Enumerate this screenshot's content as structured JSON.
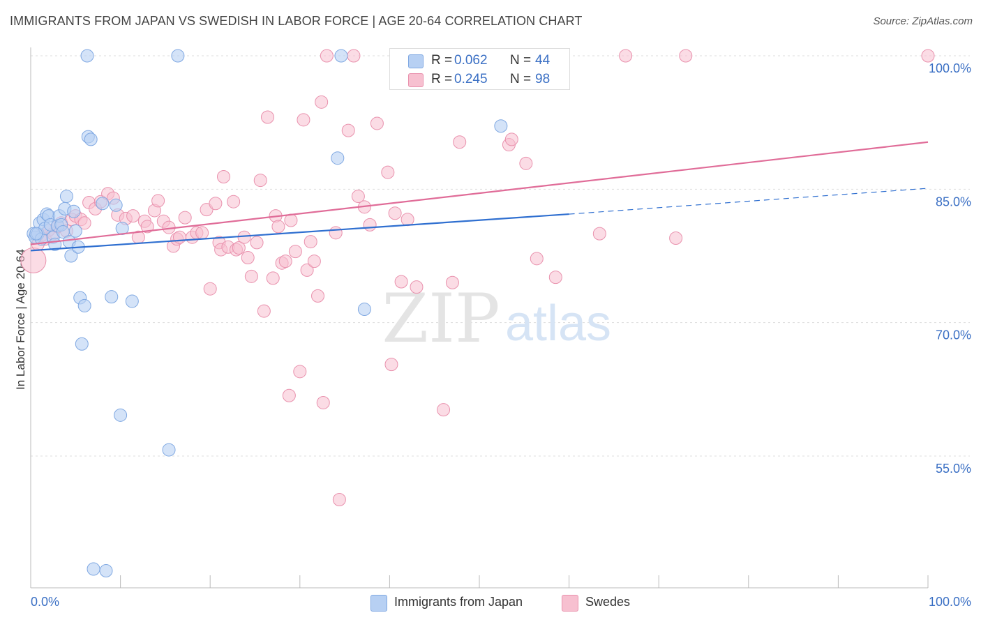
{
  "title": "IMMIGRANTS FROM JAPAN VS SWEDISH IN LABOR FORCE | AGE 20-64 CORRELATION CHART",
  "source": "Source: ZipAtlas.com",
  "watermark": {
    "zip": "ZIP",
    "atlas": "atlas"
  },
  "legend": {
    "r_label": "R =",
    "n_label": "N =",
    "rows": [
      {
        "r": "0.062",
        "n": "44"
      },
      {
        "r": "0.245",
        "n": "98"
      }
    ]
  },
  "colors": {
    "japan_fill": "#b7d0f3",
    "japan_stroke": "#7fa8e2",
    "japan_line": "#2f6fd0",
    "swedes_fill": "#f7c0d0",
    "swedes_stroke": "#e991ad",
    "swedes_line": "#e06c98",
    "tick_label": "#3a6fc4",
    "grid": "#dddddd"
  },
  "chart_data": {
    "type": "scatter",
    "title": "IMMIGRANTS FROM JAPAN VS SWEDISH IN LABOR FORCE | AGE 20-64 CORRELATION CHART",
    "xlabel": "",
    "ylabel": "In Labor Force | Age 20-64",
    "xlim": [
      0,
      100
    ],
    "ylim": [
      41.5,
      102.5
    ],
    "x_tick_labels": [
      "0.0%",
      "100.0%"
    ],
    "y_ticks": [
      55,
      70,
      85,
      100
    ],
    "y_tick_labels": [
      "55.0%",
      "70.0%",
      "85.0%",
      "100.0%"
    ],
    "grid": true,
    "legend_position": "top-center",
    "series": [
      {
        "name": "Immigrants from Japan",
        "r": 0.062,
        "n": 44,
        "trend": {
          "x_start": 0,
          "y_start": 78.1,
          "x_end": 60,
          "y_end": 82.2,
          "dashed_to_x": 100,
          "dashed_end_y": 85.1
        },
        "points": [
          [
            0.3,
            80.0
          ],
          [
            0.5,
            79.6
          ],
          [
            0.8,
            80.0
          ],
          [
            1.0,
            81.2
          ],
          [
            1.2,
            79.4
          ],
          [
            1.4,
            81.6
          ],
          [
            1.6,
            80.6
          ],
          [
            1.8,
            82.2
          ],
          [
            2.0,
            82.0
          ],
          [
            2.2,
            81.0
          ],
          [
            2.5,
            79.6
          ],
          [
            2.7,
            78.8
          ],
          [
            3.0,
            80.9
          ],
          [
            3.2,
            82.0
          ],
          [
            3.4,
            81.0
          ],
          [
            3.6,
            80.2
          ],
          [
            3.8,
            82.8
          ],
          [
            4.0,
            84.2
          ],
          [
            4.3,
            79.1
          ],
          [
            4.5,
            77.5
          ],
          [
            4.8,
            82.5
          ],
          [
            5.0,
            80.3
          ],
          [
            5.3,
            78.5
          ],
          [
            5.5,
            72.8
          ],
          [
            5.7,
            67.6
          ],
          [
            6.0,
            71.9
          ],
          [
            6.3,
            100.0
          ],
          [
            6.4,
            90.9
          ],
          [
            6.7,
            90.6
          ],
          [
            7.0,
            42.3
          ],
          [
            8.0,
            83.4
          ],
          [
            8.4,
            42.1
          ],
          [
            9.0,
            72.9
          ],
          [
            9.5,
            83.2
          ],
          [
            10.0,
            59.6
          ],
          [
            10.2,
            80.6
          ],
          [
            11.3,
            72.4
          ],
          [
            15.4,
            55.7
          ],
          [
            16.4,
            100.0
          ],
          [
            34.2,
            88.5
          ],
          [
            34.6,
            100.0
          ],
          [
            37.2,
            71.5
          ],
          [
            52.4,
            92.1
          ],
          [
            0.6,
            80.0
          ]
        ]
      },
      {
        "name": "Swedes",
        "r": 0.245,
        "n": 98,
        "trend": {
          "x_start": 0,
          "y_start": 78.8,
          "x_end": 100,
          "y_end": 90.3
        },
        "points": [
          [
            0.3,
            77.0
          ],
          [
            0.8,
            78.8
          ],
          [
            1.2,
            79.8
          ],
          [
            1.6,
            79.4
          ],
          [
            2.0,
            80.4
          ],
          [
            2.5,
            80.0
          ],
          [
            3.0,
            80.8
          ],
          [
            3.4,
            81.2
          ],
          [
            4.0,
            80.3
          ],
          [
            4.6,
            81.6
          ],
          [
            5.0,
            82.0
          ],
          [
            5.6,
            81.6
          ],
          [
            6.0,
            81.2
          ],
          [
            6.5,
            83.5
          ],
          [
            7.2,
            82.8
          ],
          [
            7.8,
            83.6
          ],
          [
            8.6,
            84.5
          ],
          [
            9.2,
            84.0
          ],
          [
            9.7,
            82.1
          ],
          [
            10.6,
            81.7
          ],
          [
            11.4,
            82.0
          ],
          [
            12.0,
            79.6
          ],
          [
            12.7,
            81.4
          ],
          [
            13.0,
            80.8
          ],
          [
            13.8,
            82.6
          ],
          [
            14.2,
            83.7
          ],
          [
            14.8,
            81.4
          ],
          [
            15.4,
            80.7
          ],
          [
            15.9,
            78.6
          ],
          [
            16.3,
            79.4
          ],
          [
            16.6,
            79.6
          ],
          [
            17.2,
            81.8
          ],
          [
            18.0,
            79.6
          ],
          [
            18.5,
            80.1
          ],
          [
            19.1,
            80.1
          ],
          [
            19.6,
            82.7
          ],
          [
            20.0,
            73.8
          ],
          [
            20.6,
            83.4
          ],
          [
            21.0,
            79.0
          ],
          [
            21.2,
            78.2
          ],
          [
            21.5,
            86.4
          ],
          [
            22.0,
            78.5
          ],
          [
            22.6,
            83.6
          ],
          [
            22.9,
            78.2
          ],
          [
            23.2,
            78.4
          ],
          [
            23.8,
            79.6
          ],
          [
            24.2,
            77.3
          ],
          [
            24.6,
            75.2
          ],
          [
            25.2,
            79.0
          ],
          [
            25.6,
            86.0
          ],
          [
            26.0,
            71.3
          ],
          [
            26.4,
            93.1
          ],
          [
            27.0,
            75.0
          ],
          [
            27.3,
            82.0
          ],
          [
            27.6,
            80.8
          ],
          [
            28.0,
            76.7
          ],
          [
            28.4,
            76.9
          ],
          [
            28.8,
            61.8
          ],
          [
            29.0,
            81.5
          ],
          [
            29.5,
            78.0
          ],
          [
            30.0,
            64.5
          ],
          [
            30.4,
            92.8
          ],
          [
            30.8,
            75.9
          ],
          [
            31.2,
            79.1
          ],
          [
            31.6,
            76.9
          ],
          [
            32.0,
            73.0
          ],
          [
            32.4,
            94.8
          ],
          [
            32.6,
            61.0
          ],
          [
            33.0,
            100.0
          ],
          [
            34.0,
            80.1
          ],
          [
            34.4,
            50.1
          ],
          [
            35.4,
            91.6
          ],
          [
            36.0,
            100.0
          ],
          [
            36.5,
            84.2
          ],
          [
            37.2,
            83.0
          ],
          [
            37.8,
            81.0
          ],
          [
            38.6,
            92.4
          ],
          [
            39.8,
            86.9
          ],
          [
            40.2,
            65.3
          ],
          [
            40.6,
            82.3
          ],
          [
            40.9,
            100.0
          ],
          [
            41.3,
            74.6
          ],
          [
            42.0,
            81.6
          ],
          [
            43.0,
            74.0
          ],
          [
            46.0,
            60.2
          ],
          [
            47.0,
            74.5
          ],
          [
            47.8,
            90.3
          ],
          [
            53.3,
            90.0
          ],
          [
            53.6,
            90.6
          ],
          [
            55.2,
            87.9
          ],
          [
            56.4,
            77.2
          ],
          [
            58.5,
            75.1
          ],
          [
            63.4,
            80.0
          ],
          [
            66.3,
            100.0
          ],
          [
            71.9,
            79.5
          ],
          [
            73.0,
            100.0
          ],
          [
            100.0,
            100.0
          ],
          [
            45.5,
            100.0
          ]
        ]
      }
    ]
  },
  "bottom_legend": [
    "Immigrants from Japan",
    "Swedes"
  ]
}
